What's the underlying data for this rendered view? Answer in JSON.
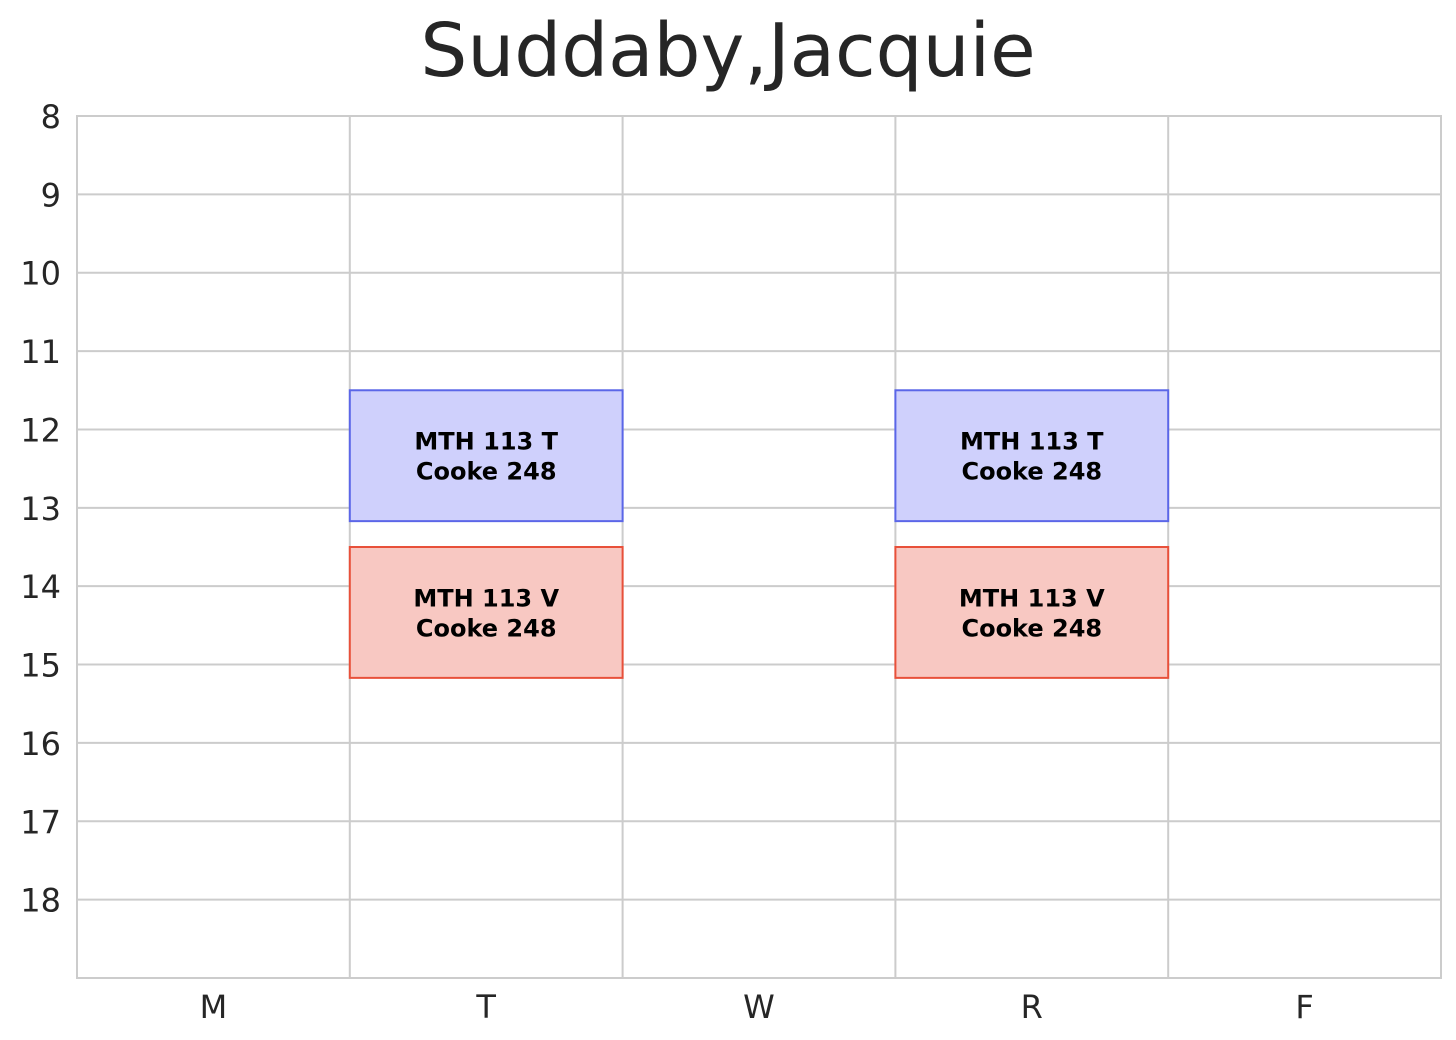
{
  "chart_data": {
    "type": "schedule",
    "title": "Suddaby,Jacquie",
    "days": [
      "M",
      "T",
      "W",
      "R",
      "F"
    ],
    "y_ticks": [
      8,
      9,
      10,
      11,
      12,
      13,
      14,
      15,
      16,
      17,
      18
    ],
    "ylim": [
      8,
      19
    ],
    "grid": true,
    "colors": {
      "blue_fill": "#cfd0fc",
      "blue_edge": "#5b66e8",
      "red_fill": "#f8c8c2",
      "red_edge": "#e8503a",
      "grid": "#cccccc",
      "text": "#262626"
    },
    "blocks": [
      {
        "day": "T",
        "start": 11.5,
        "end": 13.17,
        "course": "MTH 113 T",
        "room": "Cooke 248",
        "color": "blue"
      },
      {
        "day": "R",
        "start": 11.5,
        "end": 13.17,
        "course": "MTH 113 T",
        "room": "Cooke 248",
        "color": "blue"
      },
      {
        "day": "T",
        "start": 13.5,
        "end": 15.17,
        "course": "MTH 113 V",
        "room": "Cooke 248",
        "color": "red"
      },
      {
        "day": "R",
        "start": 13.5,
        "end": 15.17,
        "course": "MTH 113 V",
        "room": "Cooke 248",
        "color": "red"
      }
    ]
  }
}
